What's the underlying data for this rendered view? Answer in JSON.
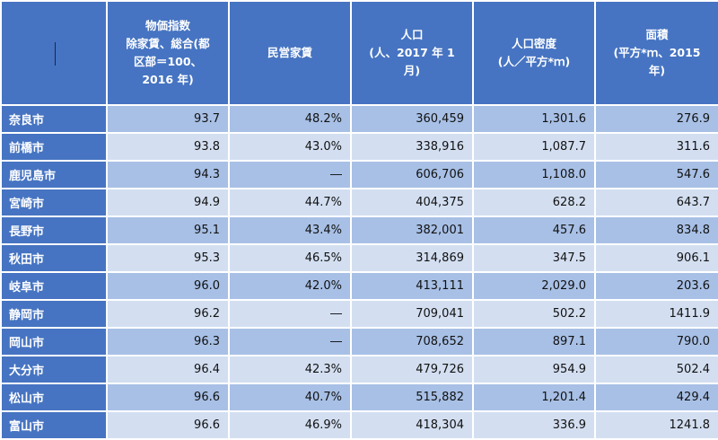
{
  "headers": [
    "",
    "物価指数\n除家賃、総合(都区部＝100、2016 年)",
    "民営家賃",
    "人口\n(人、2017 年 1 月)",
    "人口密度\n(人／平方*ｍ)",
    "面積\n(平方*ｍ、2015 年)"
  ],
  "header_lines": [
    [],
    [
      "物価指数",
      "除家賃、総合(都",
      "区部＝100、",
      "2016 年)"
    ],
    [
      "民営家賃"
    ],
    [
      "人口",
      "(人、2017 年 1",
      "月)"
    ],
    [
      "人口密度",
      "(人／平方*ｍ)"
    ],
    [
      "面積",
      "(平方*ｍ、2015",
      "年)"
    ]
  ],
  "rows": [
    {
      "city": "奈良市",
      "price_index": "93.7",
      "rent": "48.2%",
      "population": "360,459",
      "density": "1,301.6",
      "area": "276.9"
    },
    {
      "city": "前橋市",
      "price_index": "93.8",
      "rent": "43.0%",
      "population": "338,916",
      "density": "1,087.7",
      "area": "311.6"
    },
    {
      "city": "鹿児島市",
      "price_index": "94.3",
      "rent": "―",
      "population": "606,706",
      "density": "1,108.0",
      "area": "547.6"
    },
    {
      "city": "宮崎市",
      "price_index": "94.9",
      "rent": "44.7%",
      "population": "404,375",
      "density": "628.2",
      "area": "643.7"
    },
    {
      "city": "長野市",
      "price_index": "95.1",
      "rent": "43.4%",
      "population": "382,001",
      "density": "457.6",
      "area": "834.8"
    },
    {
      "city": "秋田市",
      "price_index": "95.3",
      "rent": "46.5%",
      "population": "314,869",
      "density": "347.5",
      "area": "906.1"
    },
    {
      "city": "岐阜市",
      "price_index": "96.0",
      "rent": "42.0%",
      "population": "413,111",
      "density": "2,029.0",
      "area": "203.6"
    },
    {
      "city": "静岡市",
      "price_index": "96.2",
      "rent": "―",
      "population": "709,041",
      "density": "502.2",
      "area": "1411.9"
    },
    {
      "city": "岡山市",
      "price_index": "96.3",
      "rent": "―",
      "population": "708,652",
      "density": "897.1",
      "area": "790.0"
    },
    {
      "city": "大分市",
      "price_index": "96.4",
      "rent": "42.3%",
      "population": "479,726",
      "density": "954.9",
      "area": "502.4"
    },
    {
      "city": "松山市",
      "price_index": "96.6",
      "rent": "40.7%",
      "population": "515,882",
      "density": "1,201.4",
      "area": "429.4"
    },
    {
      "city": "富山市",
      "price_index": "96.6",
      "rent": "46.9%",
      "population": "418,304",
      "density": "336.9",
      "area": "1241.8"
    }
  ],
  "colors": {
    "header": "#4674c2",
    "row_odd": "#a8c0e6",
    "row_even": "#d3dff1",
    "border": "#ffffff"
  }
}
